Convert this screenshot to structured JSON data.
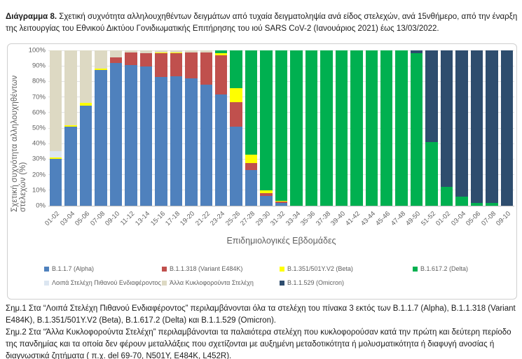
{
  "page": {
    "title_label": "Διάγραμμα 8.",
    "title_text": "Σχετική συχνότητα αλληλουχηθέντων δειγμάτων από τυχαία δειγματοληψία ανά είδος στελεχών, ανά 15νθήμερο, από την έναρξη της λειτουργίας του Εθνικού Δικτύου Γονιδιωματικής Επιτήρησης του ιού SARS CoV-2 (Ιανουάριος 2021) έως 13/03/2022.",
    "footnote1": "Σημ.1 Στα “Λοιπά Στελέχη Πιθανού Ενδιαφέροντος” περιλαμβάνονται όλα τα στελέχη του πίνακα 3 εκτός των B.1.1.7 (Alpha), B.1.1.318 (Variant E484K), B.1.351/501Y.V2 (Beta), B.1.617.2 (Delta) και B.1.1.529 (Omicron).",
    "footnote2": "Σημ.2 Στα “Άλλα Κυκλοφορούντα Στελέχη” περιλαμβάνονται τα παλαιότερα στελέχη που κυκλοφορούσαν κατά την πρώτη και δεύτερη περίοδο της πανδημίας και τα οποία δεν φέρουν μεταλλάξεις που σχετίζονται με αυξημένη μεταδοτικότητα ή μολυσματικότητα ή διαφυγή ανοσίας ή διαγνωστικά ζητήματα ( π.χ. del 69-70, N501Y, E484K, L452R)."
  },
  "chart_data": {
    "type": "bar",
    "stacked": true,
    "title": "",
    "xlabel": "Επιδημιολογικές Εβδομάδες",
    "ylabel": "Σχετική συχνότητα αλληλουχηθέντων στελεχών (%)",
    "ylim": [
      0,
      100
    ],
    "yticks": [
      "0%",
      "10%",
      "20%",
      "30%",
      "40%",
      "50%",
      "60%",
      "70%",
      "80%",
      "90%",
      "100%"
    ],
    "grid": true,
    "legend_position": "bottom",
    "categories": [
      "01-02",
      "03-04",
      "05-06",
      "07-08",
      "09-10",
      "11-12",
      "13-14",
      "15-16",
      "17-18",
      "19-20",
      "21-22",
      "23-24",
      "25-26",
      "27-28",
      "29-30",
      "31-32",
      "33-34",
      "35-36",
      "37-38",
      "39-40",
      "41-42",
      "43-44",
      "45-46",
      "47-48",
      "49-50",
      "51-52",
      "01-02",
      "03-04",
      "05-06",
      "07-08",
      "09-10"
    ],
    "series": [
      {
        "name": "B.1.1.7 (Alpha)",
        "color": "#4F81BD",
        "values": [
          30,
          51,
          64.5,
          87.5,
          92,
          90.5,
          89.5,
          83,
          83.5,
          82,
          78,
          71.5,
          51,
          23,
          6.5,
          2,
          0,
          0,
          0,
          0,
          0,
          0,
          0,
          0,
          0,
          0,
          0,
          0,
          0,
          0,
          0
        ]
      },
      {
        "name": "B.1.1.318 (Variant E484K)",
        "color": "#C0504D",
        "values": [
          0,
          0,
          0,
          0,
          3.5,
          8,
          8.5,
          15,
          14.5,
          16.5,
          20.5,
          25.5,
          15.5,
          4.5,
          1.5,
          0.5,
          0,
          0,
          0,
          0,
          0,
          0,
          0,
          0,
          0,
          0,
          0,
          0,
          0,
          0,
          0
        ]
      },
      {
        "name": "B.1.351/501Y.V2 (Beta)",
        "color": "#FFFF00",
        "values": [
          1,
          1,
          1.5,
          1,
          0,
          0,
          0,
          0.5,
          0.5,
          0,
          0,
          1,
          9,
          5.5,
          2,
          0.5,
          0,
          0,
          0,
          0,
          0,
          0,
          0,
          0,
          0,
          0,
          0,
          0,
          0,
          0,
          0
        ]
      },
      {
        "name": "B.1.617.2 (Delta)",
        "color": "#00B050",
        "values": [
          0,
          0,
          0,
          0,
          0,
          0,
          0,
          0,
          0,
          0,
          0,
          2,
          24.5,
          67,
          90,
          97,
          100,
          100,
          100,
          100,
          100,
          100,
          100,
          100,
          98,
          41,
          12,
          6,
          2,
          2,
          0
        ]
      },
      {
        "name": "Λοιπά Στελέχη Πιθανού Ενδιαφέροντος",
        "color": "#DCE6F1",
        "values": [
          4,
          0,
          0,
          0,
          0,
          0,
          0,
          0,
          0,
          0,
          0,
          0,
          0,
          0,
          0,
          0,
          0,
          0,
          0,
          0,
          0,
          0,
          0,
          0,
          0,
          0,
          0,
          0,
          0,
          0,
          0
        ]
      },
      {
        "name": "Άλλα Κυκλοφορούντα Στελέχη",
        "color": "#DDD9C3",
        "values": [
          65,
          48,
          34,
          11.5,
          4.5,
          1.5,
          2,
          1.5,
          1.5,
          1.5,
          1.5,
          0,
          0,
          0,
          0,
          0,
          0,
          0,
          0,
          0,
          0,
          0,
          0,
          0,
          0,
          0,
          0,
          0,
          0,
          0,
          0
        ]
      },
      {
        "name": "B.1.1.529 (Omicron)",
        "color": "#2E4D6E",
        "values": [
          0,
          0,
          0,
          0,
          0,
          0,
          0,
          0,
          0,
          0,
          0,
          0,
          0,
          0,
          0,
          0,
          0,
          0,
          0,
          0,
          0,
          0,
          0,
          0,
          2,
          59,
          88,
          94,
          98,
          98,
          100
        ]
      }
    ],
    "legend": {
      "rows": [
        [
          0,
          1,
          2,
          3
        ],
        [
          4,
          5,
          6
        ]
      ]
    }
  }
}
